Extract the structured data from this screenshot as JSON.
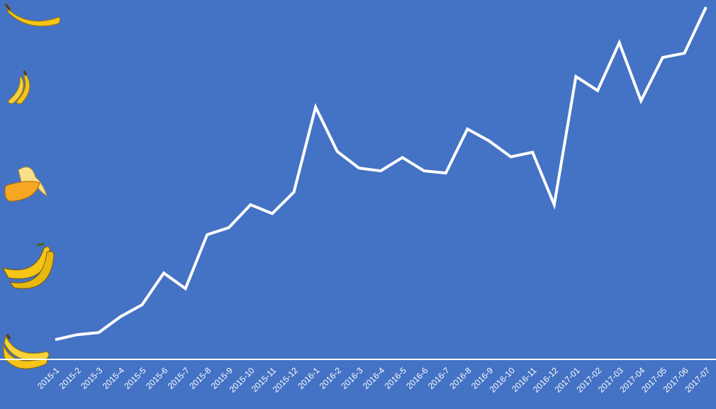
{
  "chart_data": {
    "type": "line",
    "categories": [
      "2015-1",
      "2015-2",
      "2015-3",
      "2015-4",
      "2015-5",
      "2015-6",
      "2015-7",
      "2015-8",
      "2015-9",
      "2015-10",
      "2015-11",
      "2015-12",
      "2016-1",
      "2016-2",
      "2016-3",
      "2016-4",
      "2016-5",
      "2016-6",
      "2016-7",
      "2016-8",
      "2016-9",
      "2016-10",
      "2016-11",
      "2016-12",
      "2017-01",
      "2017-02",
      "2017-03",
      "2017-04",
      "2017-05",
      "2017-06",
      "2017-07"
    ],
    "values": [
      5.6,
      7.0,
      7.6,
      12.1,
      15.5,
      24.5,
      20.1,
      35.4,
      37.4,
      43.9,
      41.4,
      47.5,
      71.6,
      59.0,
      54.3,
      53.5,
      57.3,
      53.5,
      52.9,
      65.4,
      62.0,
      57.5,
      58.8,
      43.9,
      80.3,
      76.3,
      89.9,
      73.4,
      85.7,
      86.9,
      100
    ],
    "color": "#ffffff",
    "ylim": [
      0,
      100
    ]
  }
}
